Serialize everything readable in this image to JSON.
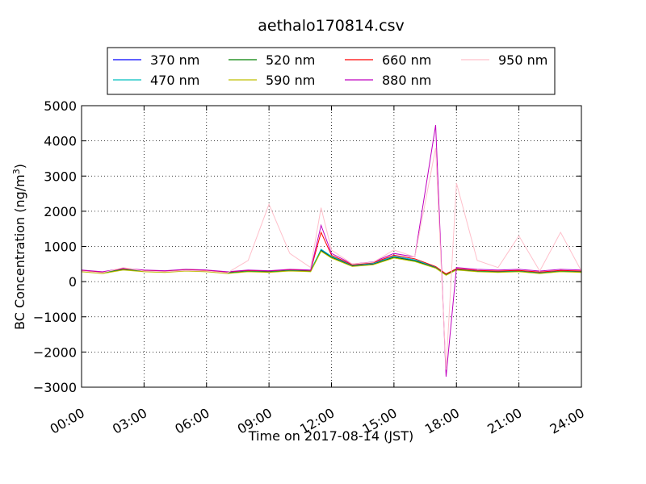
{
  "chart_data": {
    "type": "line",
    "title": "aethalo170814.csv",
    "xlabel": "Time on 2017-08-14 (JST)",
    "ylabel_main": "BC Concentration (ng/m",
    "ylabel_sup": "3",
    "ylabel_tail": ")",
    "xlim": [
      0,
      24
    ],
    "ylim": [
      -3000,
      5000
    ],
    "x_ticks": [
      0,
      3,
      6,
      9,
      12,
      15,
      18,
      21,
      24
    ],
    "x_tick_labels": [
      "00:00",
      "03:00",
      "06:00",
      "09:00",
      "12:00",
      "15:00",
      "18:00",
      "21:00",
      "24:00"
    ],
    "y_ticks": [
      -3000,
      -2000,
      -1000,
      0,
      1000,
      2000,
      3000,
      4000,
      5000
    ],
    "y_tick_labels": [
      "−3000",
      "−2000",
      "−1000",
      "0",
      "1000",
      "2000",
      "3000",
      "4000",
      "5000"
    ],
    "grid": true,
    "legend_position": "top",
    "series": [
      {
        "name": "370 nm",
        "color": "#0000ff",
        "x": [
          0,
          1,
          2,
          3,
          4,
          5,
          6,
          7,
          8,
          9,
          10,
          11,
          11.5,
          12,
          13,
          14,
          15,
          16,
          17,
          17.5,
          18,
          19,
          20,
          21,
          22,
          23,
          24
        ],
        "y": [
          300,
          250,
          350,
          300,
          280,
          320,
          300,
          250,
          300,
          280,
          320,
          300,
          900,
          700,
          450,
          500,
          700,
          600,
          400,
          200,
          350,
          300,
          280,
          300,
          250,
          300,
          280
        ]
      },
      {
        "name": "470 nm",
        "color": "#00bfbf",
        "x": [
          0,
          1,
          2,
          3,
          4,
          5,
          6,
          7,
          8,
          9,
          10,
          11,
          11.5,
          12,
          13,
          14,
          15,
          16,
          17,
          17.5,
          18,
          19,
          20,
          21,
          22,
          23,
          24
        ],
        "y": [
          310,
          260,
          360,
          310,
          290,
          330,
          310,
          260,
          310,
          290,
          330,
          310,
          920,
          720,
          470,
          520,
          720,
          620,
          420,
          210,
          360,
          310,
          290,
          310,
          260,
          310,
          290
        ]
      },
      {
        "name": "520 nm",
        "color": "#008000",
        "x": [
          0,
          1,
          2,
          3,
          4,
          5,
          6,
          7,
          8,
          9,
          10,
          11,
          11.5,
          12,
          13,
          14,
          15,
          16,
          17,
          17.5,
          18,
          19,
          20,
          21,
          22,
          23,
          24
        ],
        "y": [
          290,
          240,
          340,
          290,
          270,
          310,
          290,
          240,
          290,
          270,
          310,
          290,
          880,
          690,
          440,
          490,
          690,
          590,
          390,
          190,
          340,
          290,
          270,
          290,
          240,
          290,
          270
        ]
      },
      {
        "name": "590 nm",
        "color": "#bfbf00",
        "x": [
          0,
          1,
          2,
          3,
          4,
          5,
          6,
          7,
          8,
          9,
          10,
          11,
          11.5,
          12,
          13,
          14,
          15,
          16,
          17,
          17.5,
          18,
          19,
          20,
          21,
          22,
          23,
          24
        ],
        "y": [
          280,
          230,
          330,
          280,
          260,
          300,
          280,
          230,
          280,
          260,
          300,
          280,
          860,
          670,
          430,
          480,
          670,
          570,
          380,
          180,
          330,
          280,
          260,
          280,
          230,
          280,
          260
        ]
      },
      {
        "name": "660 nm",
        "color": "#ff0000",
        "x": [
          0,
          1,
          2,
          3,
          4,
          5,
          6,
          7,
          8,
          9,
          10,
          11,
          11.5,
          12,
          13,
          14,
          15,
          16,
          17,
          17.5,
          18,
          19,
          20,
          21,
          22,
          23,
          24
        ],
        "y": [
          320,
          270,
          370,
          320,
          300,
          340,
          320,
          270,
          320,
          300,
          340,
          320,
          1400,
          750,
          480,
          540,
          750,
          650,
          430,
          220,
          370,
          320,
          300,
          320,
          270,
          320,
          300
        ]
      },
      {
        "name": "880 nm",
        "color": "#bf00bf",
        "x": [
          0,
          1,
          2,
          3,
          4,
          5,
          6,
          7,
          8,
          9,
          10,
          11,
          11.5,
          12,
          13,
          14,
          15,
          16,
          17,
          17.5,
          18,
          19,
          20,
          21,
          22,
          23,
          24
        ],
        "y": [
          330,
          280,
          380,
          330,
          310,
          350,
          330,
          280,
          330,
          310,
          350,
          330,
          1600,
          800,
          500,
          560,
          800,
          700,
          4450,
          -2700,
          400,
          350,
          330,
          350,
          300,
          350,
          330
        ]
      },
      {
        "name": "950 nm",
        "color": "#ffc0cb",
        "x": [
          0,
          1,
          2,
          3,
          4,
          5,
          6,
          7,
          8,
          9,
          10,
          11,
          11.5,
          12,
          13,
          14,
          15,
          16,
          17,
          17.5,
          18,
          19,
          20,
          21,
          22,
          23,
          24
        ],
        "y": [
          300,
          250,
          400,
          300,
          280,
          320,
          300,
          250,
          600,
          2200,
          800,
          400,
          2100,
          900,
          500,
          550,
          900,
          700,
          3800,
          -2500,
          2800,
          600,
          400,
          1300,
          300,
          1400,
          300
        ]
      }
    ]
  }
}
